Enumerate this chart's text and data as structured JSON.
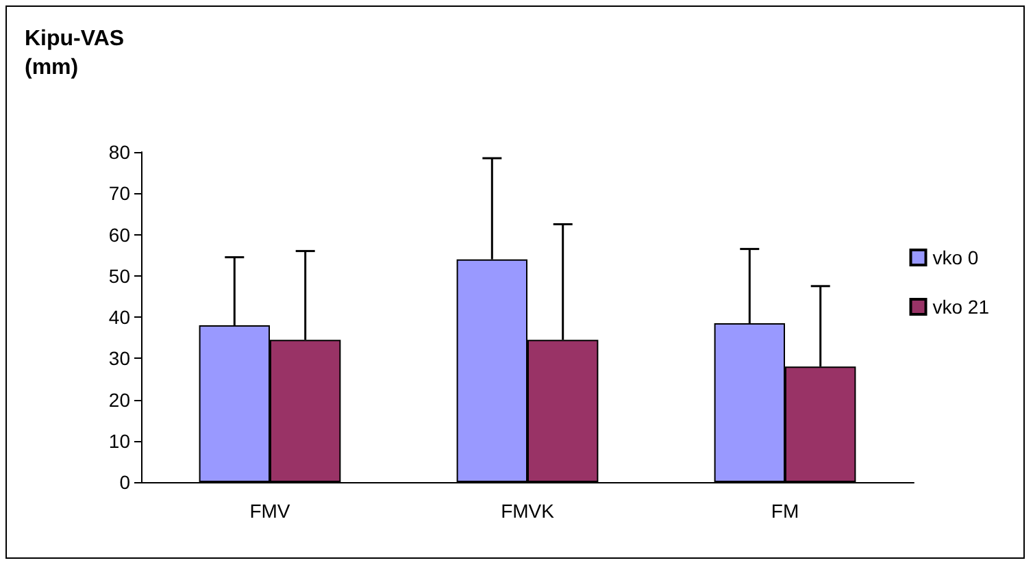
{
  "chart_data": {
    "type": "bar",
    "title": "Kipu-VAS\n(mm)",
    "categories": [
      "FMV",
      "FMVK",
      "FM"
    ],
    "series": [
      {
        "name": "vko 0",
        "color": "#9999ff",
        "values": [
          38,
          54,
          38.5
        ],
        "errors": [
          [
            38,
            54.5
          ],
          [
            54,
            78.5
          ],
          [
            38.5,
            56.5
          ]
        ]
      },
      {
        "name": "vko 21",
        "color": "#993366",
        "values": [
          34.5,
          34.5,
          28
        ],
        "errors": [
          [
            34.5,
            56
          ],
          [
            34.5,
            62.5
          ],
          [
            28,
            47.5
          ]
        ]
      }
    ],
    "ylim": [
      0,
      80
    ],
    "yticks": [
      0,
      10,
      20,
      30,
      40,
      50,
      60,
      70,
      80
    ],
    "grid": false,
    "legend": "right"
  }
}
